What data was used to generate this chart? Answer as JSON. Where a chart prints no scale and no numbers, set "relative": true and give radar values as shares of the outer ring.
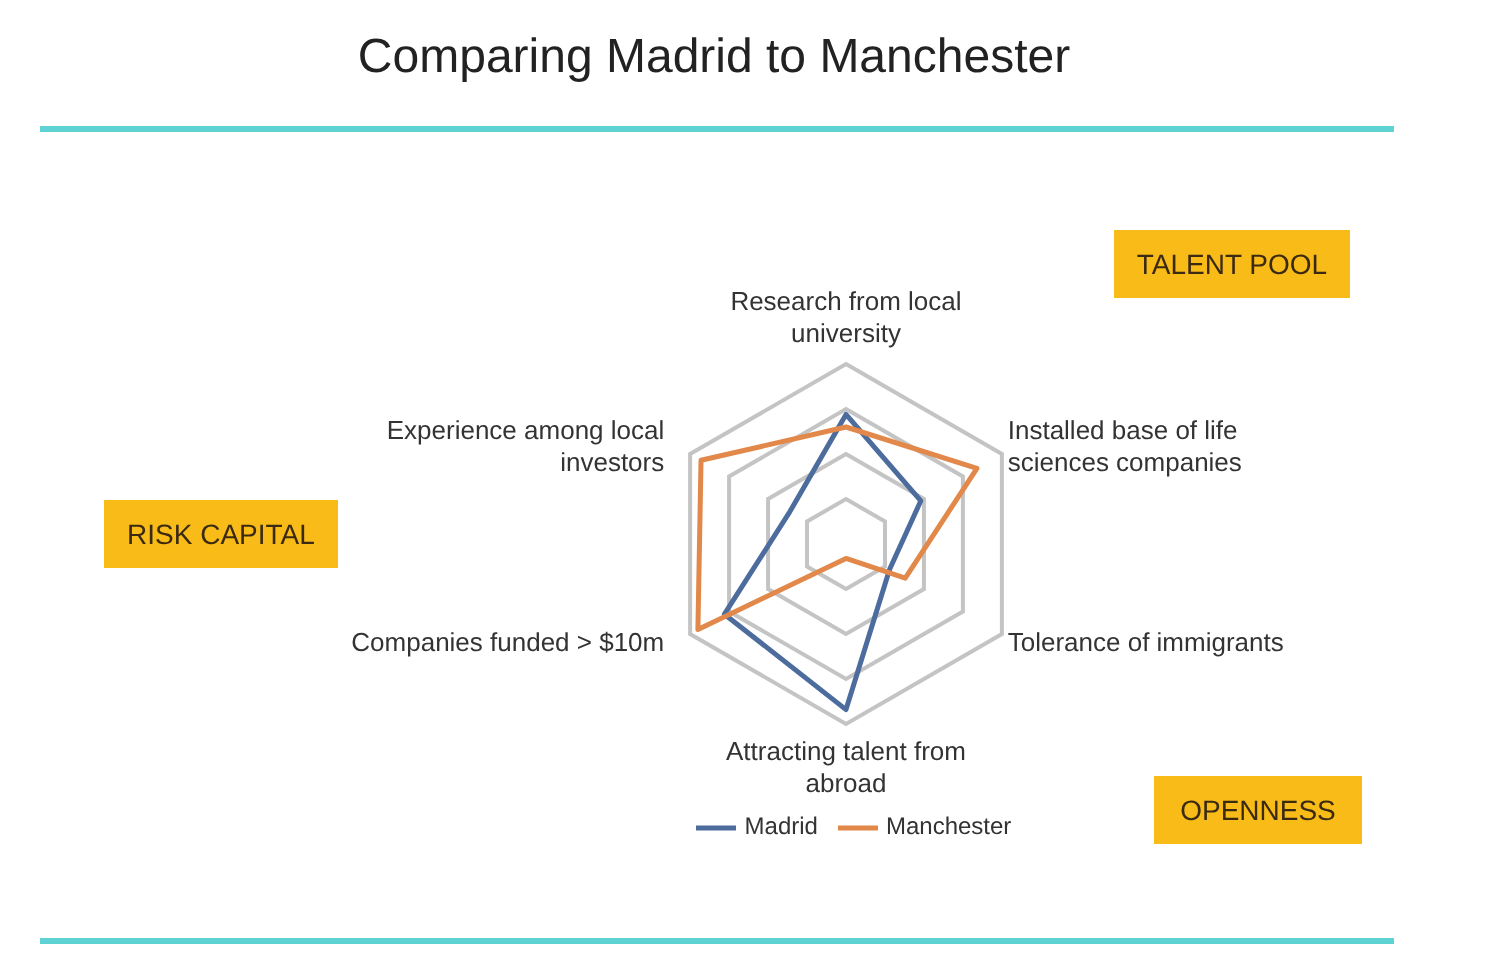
{
  "chart_data": {
    "type": "radar",
    "title": "Comparing Madrid to Manchester",
    "categories": [
      "Research from local university",
      "Installed base of life sciences companies",
      "Tolerance of immigrants",
      "Attracting talent from abroad",
      "Companies funded > $10m",
      "Experience among local investors"
    ],
    "series": [
      {
        "name": "Madrid",
        "color": "#4d6c9e",
        "values": [
          0.72,
          0.48,
          0.28,
          0.92,
          0.78,
          0.36
        ]
      },
      {
        "name": "Manchester",
        "color": "#e2884a",
        "values": [
          0.65,
          0.84,
          0.38,
          0.08,
          0.95,
          0.93
        ]
      }
    ],
    "relative": true,
    "grid": true,
    "legend": "bottom",
    "annotations": [
      "TALENT POOL",
      "RISK CAPITAL",
      "OPENNESS"
    ]
  }
}
